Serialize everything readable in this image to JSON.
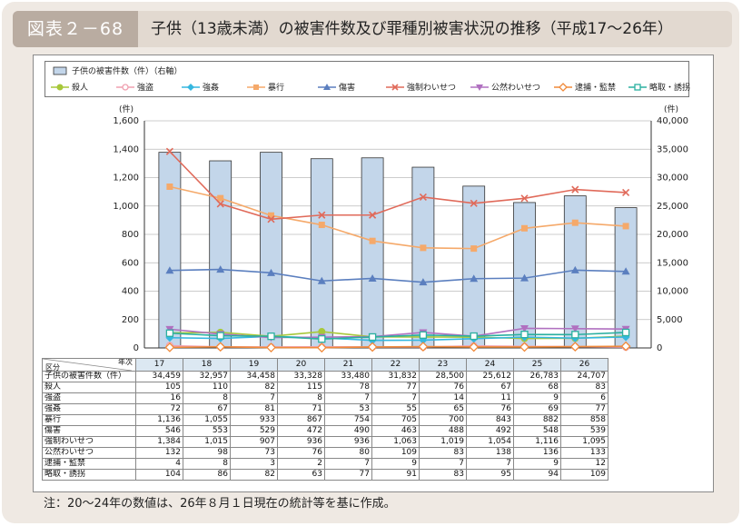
{
  "figure_label": "図表２－68",
  "title": "子供（13歳未満）の被害件数及び罪種別被害状況の推移（平成17〜26年）",
  "note": "注：20〜24年の数値は、26年８月１日現在の統計等を基に作成。",
  "chart_data": {
    "type": "bar+line",
    "title": "子供（13歳未満）の被害件数及び罪種別被害状況の推移（平成17〜26年）",
    "left_axis": {
      "unit": "(件)",
      "ylim": [
        0,
        1600
      ],
      "ticks": [
        "0",
        "200",
        "400",
        "600",
        "800",
        "1,000",
        "1,200",
        "1,400",
        "1,600"
      ]
    },
    "right_axis": {
      "unit": "(件)",
      "ylim": [
        0,
        40000
      ],
      "ticks": [
        "0",
        "5,000",
        "10,000",
        "15,000",
        "20,000",
        "25,000",
        "30,000",
        "35,000",
        "40,000"
      ]
    },
    "categories": [
      "17",
      "18",
      "19",
      "20",
      "21",
      "22",
      "23",
      "24",
      "25",
      "26"
    ],
    "bar_series": {
      "name": "子供の被害件数（件）（右軸）",
      "label": "子供の被害件数（件）",
      "color": "#c3d6ea",
      "display": [
        "34,459",
        "32,957",
        "34,458",
        "33,328",
        "33,480",
        "31,832",
        "28,500",
        "25,612",
        "26,783",
        "24,707"
      ],
      "values": [
        34459,
        32957,
        34458,
        33328,
        33480,
        31832,
        28500,
        25612,
        26783,
        24707
      ]
    },
    "series": [
      {
        "name": "殺人",
        "color": "#a7c83a",
        "marker": "circle-filled",
        "display": [
          "105",
          "110",
          "82",
          "115",
          "78",
          "77",
          "76",
          "67",
          "68",
          "83"
        ],
        "values": [
          105,
          110,
          82,
          115,
          78,
          77,
          76,
          67,
          68,
          83
        ]
      },
      {
        "name": "強盗",
        "color": "#f0a0b0",
        "marker": "circle-open",
        "display": [
          "16",
          "8",
          "7",
          "8",
          "7",
          "7",
          "14",
          "11",
          "9",
          "6"
        ],
        "values": [
          16,
          8,
          7,
          8,
          7,
          7,
          14,
          11,
          9,
          6
        ]
      },
      {
        "name": "強姦",
        "color": "#35b7e0",
        "marker": "diamond-filled",
        "display": [
          "72",
          "67",
          "81",
          "71",
          "53",
          "55",
          "65",
          "76",
          "69",
          "77"
        ],
        "values": [
          72,
          67,
          81,
          71,
          53,
          55,
          65,
          76,
          69,
          77
        ]
      },
      {
        "name": "暴行",
        "color": "#f5a96a",
        "marker": "square-filled",
        "display": [
          "1,136",
          "1,055",
          "933",
          "867",
          "754",
          "705",
          "700",
          "843",
          "882",
          "858"
        ],
        "values": [
          1136,
          1055,
          933,
          867,
          754,
          705,
          700,
          843,
          882,
          858
        ]
      },
      {
        "name": "傷害",
        "color": "#5b7fbf",
        "marker": "triangle-filled",
        "display": [
          "546",
          "553",
          "529",
          "472",
          "490",
          "463",
          "488",
          "492",
          "548",
          "539"
        ],
        "values": [
          546,
          553,
          529,
          472,
          490,
          463,
          488,
          492,
          548,
          539
        ]
      },
      {
        "name": "強制わいせつ",
        "color": "#e06a5a",
        "marker": "x",
        "display": [
          "1,384",
          "1,015",
          "907",
          "936",
          "936",
          "1,063",
          "1,019",
          "1,054",
          "1,116",
          "1,095"
        ],
        "values": [
          1384,
          1015,
          907,
          936,
          936,
          1063,
          1019,
          1054,
          1116,
          1095
        ]
      },
      {
        "name": "公然わいせつ",
        "color": "#b070c0",
        "marker": "triangle-down-filled",
        "display": [
          "132",
          "98",
          "73",
          "76",
          "80",
          "109",
          "83",
          "138",
          "136",
          "133"
        ],
        "values": [
          132,
          98,
          73,
          76,
          80,
          109,
          83,
          138,
          136,
          133
        ]
      },
      {
        "name": "逮捕・監禁",
        "color": "#f08a3a",
        "marker": "diamond-open",
        "display": [
          "4",
          "8",
          "3",
          "2",
          "7",
          "9",
          "7",
          "7",
          "9",
          "12"
        ],
        "values": [
          4,
          8,
          3,
          2,
          7,
          9,
          7,
          7,
          9,
          12
        ]
      },
      {
        "name": "略取・誘拐",
        "color": "#2ab0a0",
        "marker": "square-open",
        "display": [
          "104",
          "86",
          "82",
          "63",
          "77",
          "91",
          "83",
          "95",
          "94",
          "109"
        ],
        "values": [
          104,
          86,
          82,
          63,
          77,
          91,
          83,
          95,
          94,
          109
        ]
      }
    ]
  },
  "table": {
    "corner_top": "年次",
    "corner_bottom": "区分"
  }
}
